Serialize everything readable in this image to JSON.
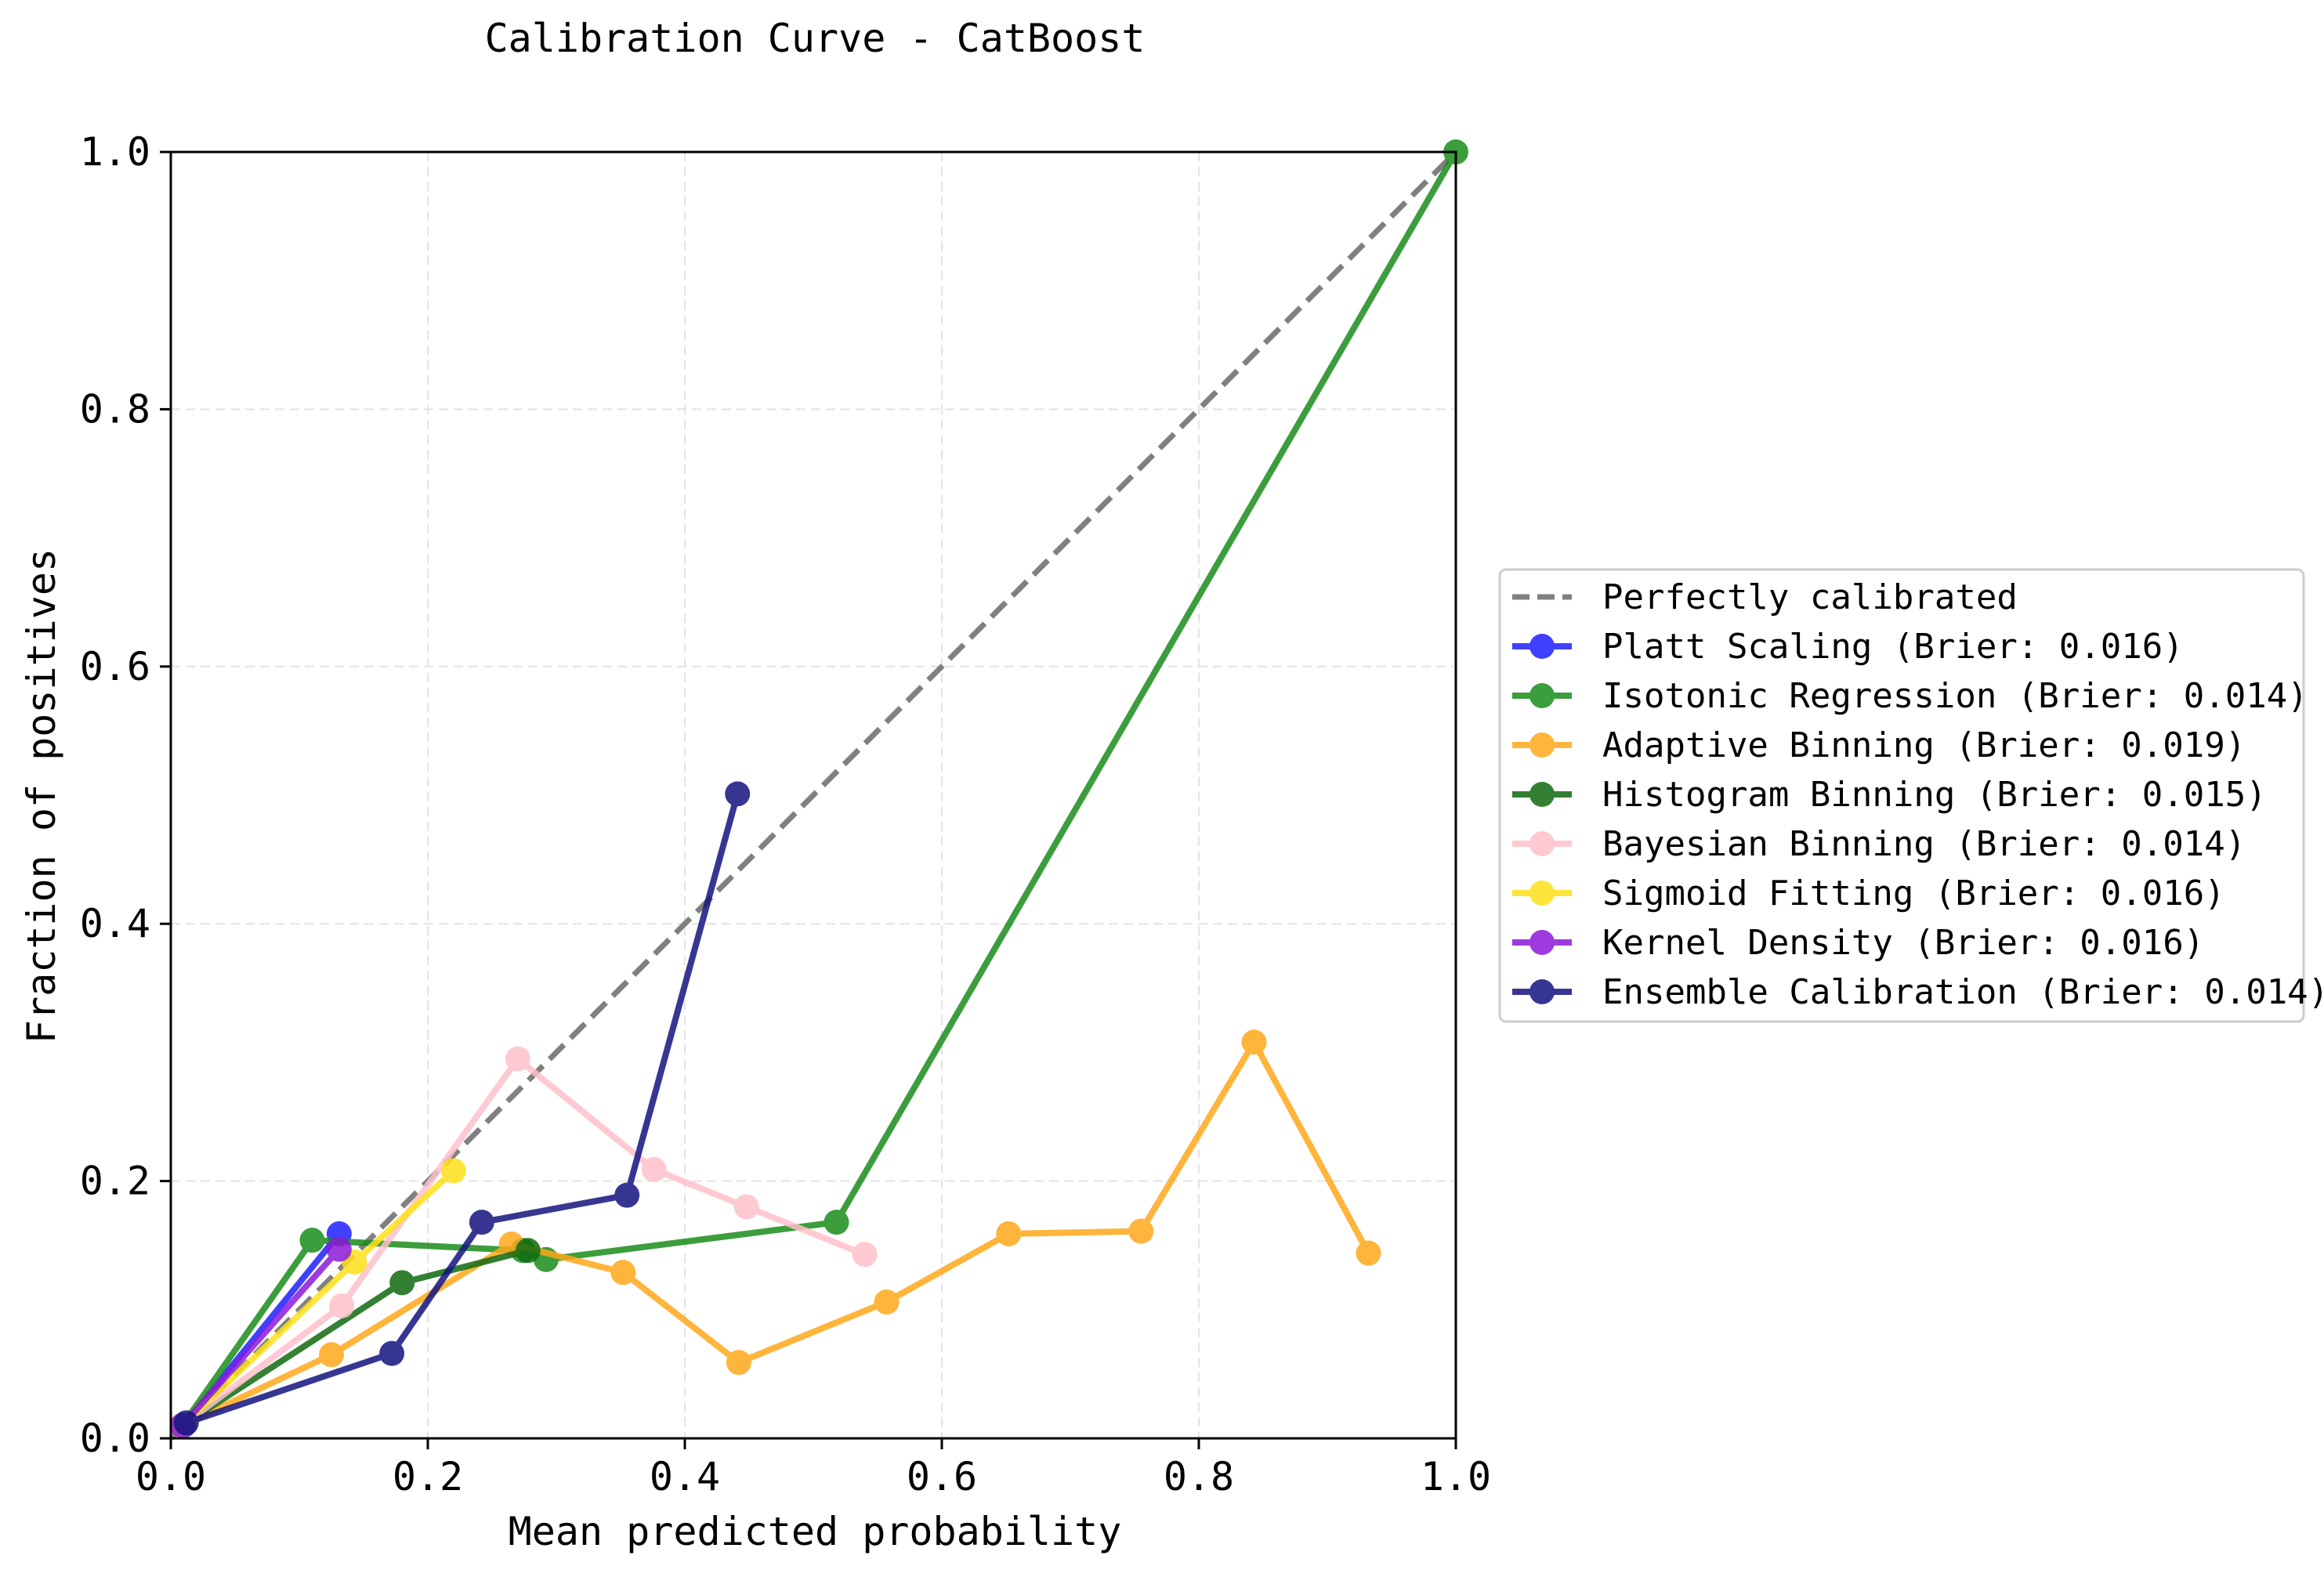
{
  "chart_data": {
    "type": "line",
    "title": "Calibration Curve - CatBoost",
    "xlabel": "Mean predicted probability",
    "ylabel": "Fraction of positives",
    "xlim": [
      0.0,
      1.0
    ],
    "ylim": [
      0.0,
      1.0
    ],
    "x_ticks": [
      "0.0",
      "0.2",
      "0.4",
      "0.6",
      "0.8",
      "1.0"
    ],
    "y_ticks": [
      "0.0",
      "0.2",
      "0.4",
      "0.6",
      "0.8",
      "1.0"
    ],
    "grid": true,
    "legend_position": "outside right, vertically centered",
    "reference_line": {
      "name": "Perfectly calibrated",
      "color": "#808080",
      "style": "dashed",
      "x": [
        0.0,
        1.0
      ],
      "y": [
        0.0,
        1.0
      ]
    },
    "series": [
      {
        "name": "Platt Scaling (Brier: 0.016)",
        "color": "#1f1fff",
        "x": [
          0.01,
          0.131
        ],
        "y": [
          0.01,
          0.159
        ]
      },
      {
        "name": "Isotonic Regression (Brier: 0.014)",
        "color": "#1a8c1a",
        "x": [
          0.009,
          0.11,
          0.274,
          0.292,
          0.518,
          1.0
        ],
        "y": [
          0.01,
          0.154,
          0.146,
          0.139,
          0.168,
          1.0
        ]
      },
      {
        "name": "Adaptive Binning (Brier: 0.019)",
        "color": "#ffa81a",
        "x": [
          0.009,
          0.125,
          0.265,
          0.352,
          0.442,
          0.557,
          0.652,
          0.755,
          0.843,
          0.932
        ],
        "y": [
          0.01,
          0.065,
          0.151,
          0.129,
          0.059,
          0.106,
          0.159,
          0.161,
          0.308,
          0.144
        ]
      },
      {
        "name": "Histogram Binning (Brier: 0.015)",
        "color": "#106b10",
        "x": [
          0.009,
          0.18,
          0.278
        ],
        "y": [
          0.01,
          0.121,
          0.146
        ]
      },
      {
        "name": "Bayesian Binning (Brier: 0.014)",
        "color": "#ffc0cb",
        "x": [
          0.009,
          0.133,
          0.27,
          0.376,
          0.448,
          0.54
        ],
        "y": [
          0.01,
          0.103,
          0.295,
          0.209,
          0.18,
          0.143
        ]
      },
      {
        "name": "Sigmoid Fitting (Brier: 0.016)",
        "color": "#ffe01a",
        "x": [
          0.009,
          0.143,
          0.22
        ],
        "y": [
          0.01,
          0.137,
          0.208
        ]
      },
      {
        "name": "Kernel Density (Brier: 0.016)",
        "color": "#8c1adb",
        "x": [
          0.009,
          0.131
        ],
        "y": [
          0.01,
          0.147
        ]
      },
      {
        "name": "Ensemble Calibration (Brier: 0.014)",
        "color": "#14147f",
        "x": [
          0.012,
          0.172,
          0.242,
          0.355,
          0.441
        ],
        "y": [
          0.012,
          0.066,
          0.168,
          0.189,
          0.501
        ]
      }
    ]
  }
}
